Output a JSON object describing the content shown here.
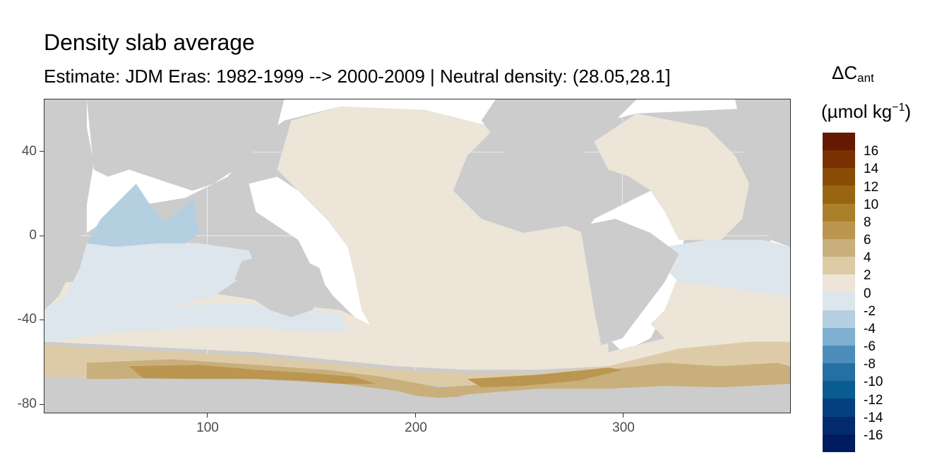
{
  "title": "Density slab average",
  "subtitle": "Estimate: JDM Eras: 1982-1999 --> 2000-2009 | Neutral density: (28.05,28.1]",
  "legend": {
    "title_main": "ΔC",
    "title_sub": "ant",
    "units_pre": "(µmol kg",
    "units_sup": "−1",
    "units_post": ")",
    "labels": [
      "16",
      "14",
      "12",
      "10",
      "8",
      "6",
      "4",
      "2",
      "0",
      "-2",
      "-4",
      "-6",
      "-8",
      "-10",
      "-12",
      "-14",
      "-16"
    ],
    "colors": [
      "#651900",
      "#7a3001",
      "#8a4c05",
      "#9a6512",
      "#ac7f2c",
      "#bb9650",
      "#c9af7b",
      "#ddcba8",
      "#ece5d8",
      "#dde6ec",
      "#b4cfe0",
      "#80b0cf",
      "#4c8dba",
      "#2470a3",
      "#095c91",
      "#043f80",
      "#032a6d",
      "#001b5e"
    ],
    "label_indices": [
      1,
      2,
      3,
      4,
      5,
      6,
      7,
      8,
      9,
      10,
      11,
      12,
      13,
      14,
      15,
      16,
      17
    ]
  },
  "axes": {
    "x_ticks": [
      "100",
      "200",
      "300"
    ],
    "y_ticks": [
      "40",
      "0",
      "-40",
      "-80"
    ]
  },
  "map": {
    "land_color": "#cccccc",
    "nodata_color": "#ffffff"
  }
}
